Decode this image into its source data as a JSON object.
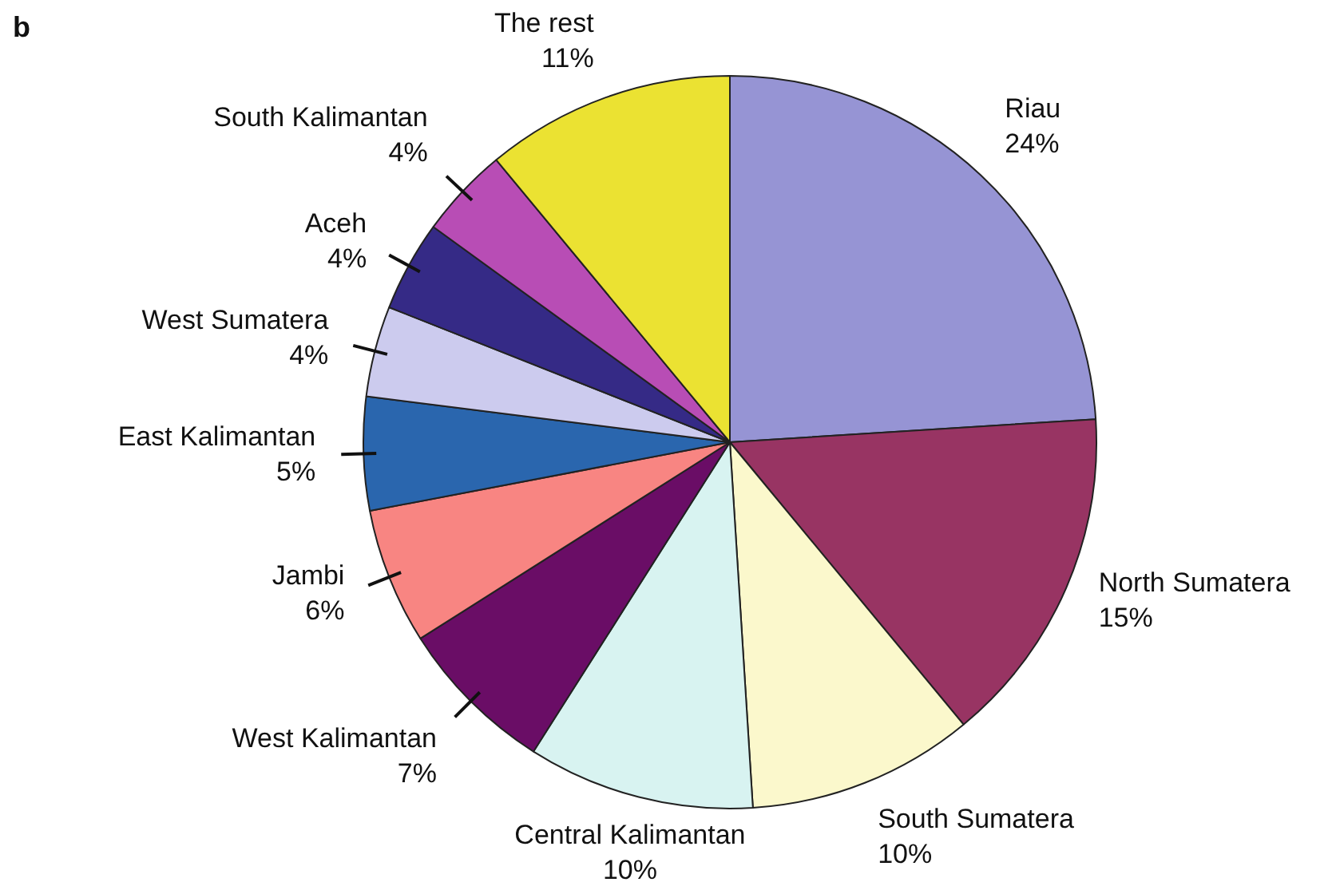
{
  "chart_data": {
    "type": "pie",
    "title": "b",
    "categories": [
      "Riau",
      "North Sumatera",
      "South Sumatera",
      "Central Kalimantan",
      "West Kalimantan",
      "Jambi",
      "East Kalimantan",
      "West Sumatera",
      "Aceh",
      "South Kalimantan",
      "The rest"
    ],
    "values": [
      24,
      15,
      10,
      10,
      7,
      6,
      5,
      4,
      4,
      4,
      11
    ],
    "value_labels": [
      "24%",
      "15%",
      "10%",
      "10%",
      "7%",
      "6%",
      "5%",
      "4%",
      "4%",
      "4%",
      "11%"
    ],
    "colors": [
      "#9694d4",
      "#983463",
      "#fbf8cc",
      "#d8f3f1",
      "#6a0d66",
      "#f88582",
      "#2a66ae",
      "#cccbee",
      "#352a86",
      "#b84db5",
      "#ebe232"
    ],
    "legend": false
  }
}
